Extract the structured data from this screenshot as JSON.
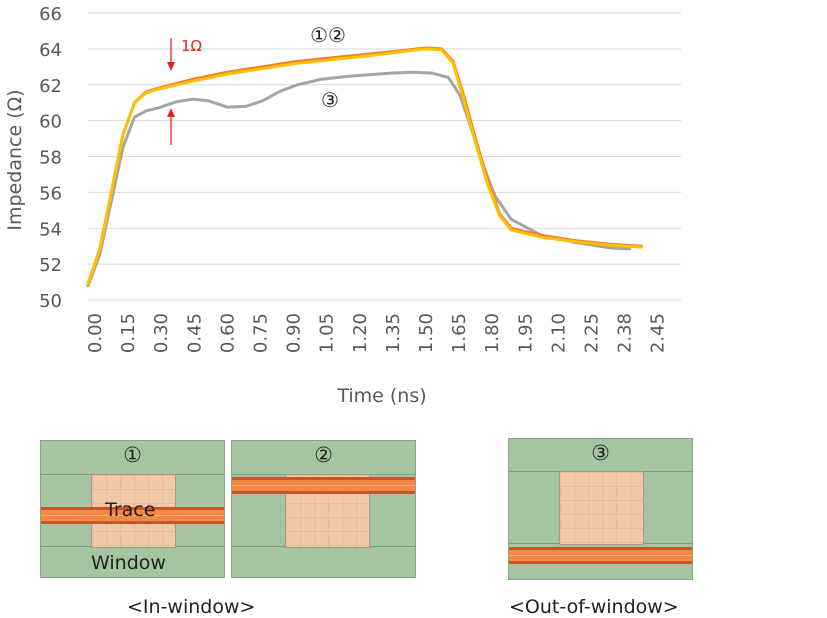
{
  "chart_data": {
    "type": "line",
    "xlabel": "Time (ns)",
    "ylabel": "Impedance (Ω)",
    "ylim": [
      50,
      66
    ],
    "yticks": [
      "50",
      "52",
      "54",
      "56",
      "58",
      "60",
      "62",
      "64",
      "66"
    ],
    "xticks": [
      "0.00",
      "0.15",
      "0.30",
      "0.45",
      "0.60",
      "0.75",
      "0.90",
      "1.05",
      "1.20",
      "1.35",
      "1.50",
      "1.65",
      "1.80",
      "1.95",
      "2.10",
      "2.25",
      "2.38",
      "2.45"
    ],
    "grid": "horizontal",
    "series": [
      {
        "name": "①",
        "color": "#ED7D31",
        "points": [
          [
            0.0,
            50.9
          ],
          [
            0.05,
            52.8
          ],
          [
            0.1,
            56.0
          ],
          [
            0.15,
            59.2
          ],
          [
            0.2,
            61.0
          ],
          [
            0.25,
            61.6
          ],
          [
            0.3,
            61.8
          ],
          [
            0.45,
            62.3
          ],
          [
            0.6,
            62.7
          ],
          [
            0.75,
            63.0
          ],
          [
            0.9,
            63.3
          ],
          [
            1.05,
            63.5
          ],
          [
            1.2,
            63.7
          ],
          [
            1.35,
            63.9
          ],
          [
            1.45,
            64.05
          ],
          [
            1.52,
            64.0
          ],
          [
            1.57,
            63.3
          ],
          [
            1.62,
            61.2
          ],
          [
            1.67,
            58.8
          ],
          [
            1.72,
            56.6
          ],
          [
            1.77,
            54.8
          ],
          [
            1.82,
            54.0
          ],
          [
            1.95,
            53.6
          ],
          [
            2.1,
            53.3
          ],
          [
            2.25,
            53.1
          ],
          [
            2.38,
            53.0
          ]
        ]
      },
      {
        "name": "②",
        "color": "#FFC000",
        "points": [
          [
            0.0,
            50.9
          ],
          [
            0.05,
            52.8
          ],
          [
            0.1,
            56.0
          ],
          [
            0.15,
            59.2
          ],
          [
            0.2,
            61.0
          ],
          [
            0.25,
            61.55
          ],
          [
            0.3,
            61.75
          ],
          [
            0.45,
            62.2
          ],
          [
            0.6,
            62.6
          ],
          [
            0.75,
            62.9
          ],
          [
            0.9,
            63.2
          ],
          [
            1.05,
            63.4
          ],
          [
            1.2,
            63.6
          ],
          [
            1.35,
            63.85
          ],
          [
            1.45,
            64.0
          ],
          [
            1.52,
            63.95
          ],
          [
            1.57,
            63.2
          ],
          [
            1.62,
            61.0
          ],
          [
            1.67,
            58.6
          ],
          [
            1.72,
            56.4
          ],
          [
            1.77,
            54.7
          ],
          [
            1.82,
            53.9
          ],
          [
            1.95,
            53.5
          ],
          [
            2.1,
            53.25
          ],
          [
            2.25,
            53.05
          ],
          [
            2.38,
            52.95
          ]
        ]
      },
      {
        "name": "③",
        "color": "#A5A5A5",
        "points": [
          [
            0.0,
            50.8
          ],
          [
            0.05,
            52.5
          ],
          [
            0.1,
            55.5
          ],
          [
            0.15,
            58.5
          ],
          [
            0.2,
            60.2
          ],
          [
            0.25,
            60.55
          ],
          [
            0.3,
            60.7
          ],
          [
            0.38,
            61.05
          ],
          [
            0.45,
            61.2
          ],
          [
            0.52,
            61.1
          ],
          [
            0.6,
            60.75
          ],
          [
            0.68,
            60.8
          ],
          [
            0.75,
            61.1
          ],
          [
            0.82,
            61.6
          ],
          [
            0.9,
            62.0
          ],
          [
            1.0,
            62.3
          ],
          [
            1.1,
            62.45
          ],
          [
            1.2,
            62.55
          ],
          [
            1.3,
            62.65
          ],
          [
            1.4,
            62.7
          ],
          [
            1.48,
            62.65
          ],
          [
            1.55,
            62.4
          ],
          [
            1.6,
            61.4
          ],
          [
            1.65,
            59.5
          ],
          [
            1.7,
            57.5
          ],
          [
            1.75,
            55.8
          ],
          [
            1.82,
            54.5
          ],
          [
            1.95,
            53.6
          ],
          [
            2.1,
            53.2
          ],
          [
            2.25,
            52.9
          ],
          [
            2.33,
            52.85
          ]
        ]
      }
    ],
    "annotations": {
      "label_12": "①②",
      "label_3": "③",
      "delta": "1Ω"
    }
  },
  "panels": {
    "p1": {
      "number": "①",
      "trace_label": "Trace",
      "window_label": "Window"
    },
    "p2": {
      "number": "②"
    },
    "p3": {
      "number": "③"
    },
    "caption_in": "<In-window>",
    "caption_out": "<Out-of-window>"
  }
}
